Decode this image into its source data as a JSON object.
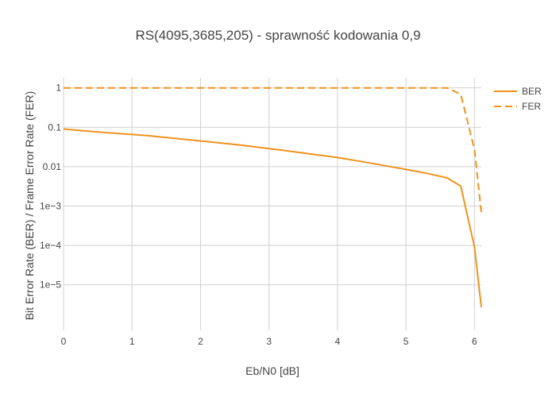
{
  "chart_data": {
    "type": "line",
    "title": "RS(4095,3685,205) - sprawność kodowania 0,9",
    "xlabel": "Eb/N0 [dB]",
    "ylabel": "Bit Error Rate (BER) / Frame Error Rate (FER)",
    "x_ticks": [
      "0",
      "1",
      "2",
      "3",
      "4",
      "5",
      "6"
    ],
    "y_ticks": [
      {
        "value": 1,
        "label": "1"
      },
      {
        "value": 0.1,
        "label": "0.1"
      },
      {
        "value": 0.01,
        "label": "0.01"
      },
      {
        "value": 0.001,
        "label": "1e−3"
      },
      {
        "value": 0.0001,
        "label": "1e−4"
      },
      {
        "value": 1e-05,
        "label": "1e−5"
      }
    ],
    "xlim": [
      0,
      6.1
    ],
    "ylim": [
      7e-07,
      1.8
    ],
    "y_scale": "log",
    "grid": true,
    "legend_position": "top-right",
    "line_color": "#f0921e",
    "series": [
      {
        "name": "BER",
        "dash": "solid",
        "points": [
          {
            "x": 0,
            "y": 0.09
          },
          {
            "x": 0.5,
            "y": 0.076
          },
          {
            "x": 1.2,
            "y": 0.062
          },
          {
            "x": 2,
            "y": 0.045
          },
          {
            "x": 2.6,
            "y": 0.035
          },
          {
            "x": 3.2,
            "y": 0.026
          },
          {
            "x": 4,
            "y": 0.017
          },
          {
            "x": 4.4,
            "y": 0.013
          },
          {
            "x": 5,
            "y": 0.0085
          },
          {
            "x": 5.3,
            "y": 0.0068
          },
          {
            "x": 5.6,
            "y": 0.0052
          },
          {
            "x": 5.8,
            "y": 0.0032
          },
          {
            "x": 6,
            "y": 9.04e-05
          },
          {
            "x": 6.1,
            "y": 2.7e-06
          }
        ]
      },
      {
        "name": "FER",
        "dash": "dashed",
        "points": [
          {
            "x": 0,
            "y": 1
          },
          {
            "x": 1,
            "y": 1
          },
          {
            "x": 2,
            "y": 1
          },
          {
            "x": 3,
            "y": 1
          },
          {
            "x": 4,
            "y": 1
          },
          {
            "x": 5,
            "y": 1
          },
          {
            "x": 5.6,
            "y": 1
          },
          {
            "x": 5.8,
            "y": 0.69
          },
          {
            "x": 6,
            "y": 0.027
          },
          {
            "x": 6.1,
            "y": 0.00068
          }
        ]
      }
    ]
  }
}
